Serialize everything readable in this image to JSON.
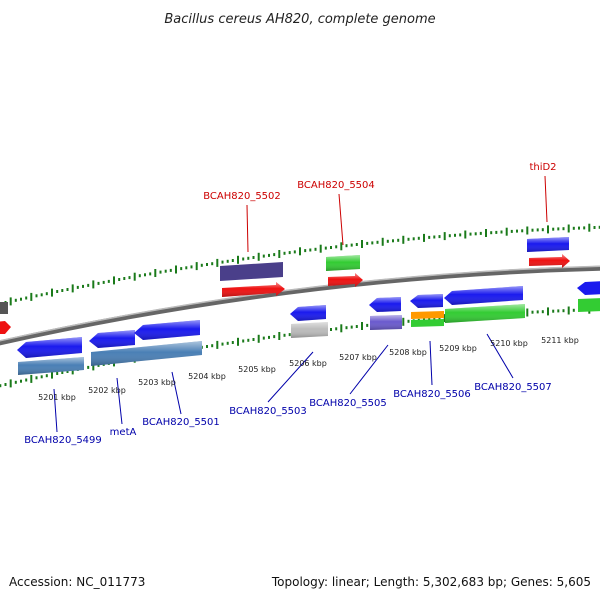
{
  "title": "Bacillus cereus AH820, complete genome",
  "footer": {
    "accession": "Accession: NC_011773",
    "summary": "Topology: linear; Length: 5,302,683 bp; Genes: 5,605"
  },
  "scale_labels": [
    "5201 kbp",
    "5202 kbp",
    "5203 kbp",
    "5204 kbp",
    "5205 kbp",
    "5206 kbp",
    "5207 kbp",
    "5208 kbp",
    "5209 kbp",
    "5210 kbp",
    "5211 kbp"
  ],
  "gene_labels_top": [
    "BCAH820_5502",
    "BCAH820_5504",
    "thiD2"
  ],
  "gene_labels_bottom": [
    "BCAH820_5499",
    "metA",
    "BCAH820_5501",
    "BCAH820_5503",
    "BCAH820_5505",
    "BCAH820_5506",
    "BCAH820_5507"
  ],
  "colors": {
    "gene_blue": "#1a1aee",
    "gene_red": "#ee1111",
    "gene_green": "#33cc33",
    "feature_steelblue": "#4a7fb5",
    "feature_darkpurple": "#4a3f8a",
    "feature_purple": "#6a5acd",
    "feature_orange": "#ff9900",
    "feature_grey": "#bbbbbb",
    "backbone": "#888888",
    "ticks": "#1a7a1a",
    "label_top": "#cc0000",
    "label_bottom": "#0000aa"
  }
}
